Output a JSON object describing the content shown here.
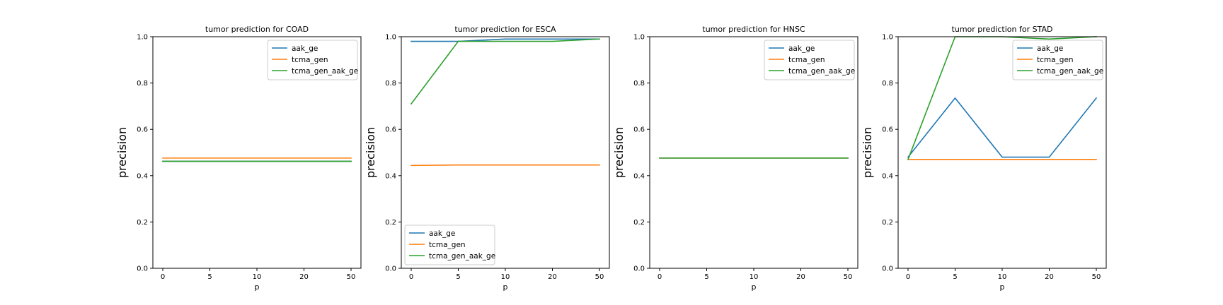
{
  "chart_data": [
    {
      "type": "line",
      "title": "tumor prediction for COAD",
      "xlabel": "p",
      "ylabel": "precision",
      "ylim": [
        0,
        1
      ],
      "x": [
        "0",
        "5",
        "10",
        "20",
        "50"
      ],
      "yticks": [
        "0.0",
        "0.2",
        "0.4",
        "0.6",
        "0.8",
        "1.0"
      ],
      "grid": false,
      "legend_position": "upper right",
      "series": [
        {
          "name": "aak_ge",
          "color": "#1f77b4",
          "values": [
            0.462,
            0.462,
            0.462,
            0.462,
            0.462
          ]
        },
        {
          "name": "tcma_gen",
          "color": "#ff7f0e",
          "values": [
            0.476,
            0.476,
            0.476,
            0.476,
            0.476
          ]
        },
        {
          "name": "tcma_gen_aak_ge",
          "color": "#2ca02c",
          "values": [
            0.462,
            0.462,
            0.462,
            0.462,
            0.462
          ]
        }
      ]
    },
    {
      "type": "line",
      "title": "tumor prediction for ESCA",
      "xlabel": "p",
      "ylabel": "precision",
      "ylim": [
        0,
        1
      ],
      "x": [
        "0",
        "5",
        "10",
        "20",
        "50"
      ],
      "yticks": [
        "0.0",
        "0.2",
        "0.4",
        "0.6",
        "0.8",
        "1.0"
      ],
      "grid": false,
      "legend_position": "lower left",
      "series": [
        {
          "name": "aak_ge",
          "color": "#1f77b4",
          "values": [
            0.98,
            0.98,
            0.99,
            0.99,
            0.99
          ]
        },
        {
          "name": "tcma_gen",
          "color": "#ff7f0e",
          "values": [
            0.444,
            0.446,
            0.446,
            0.446,
            0.446
          ]
        },
        {
          "name": "tcma_gen_aak_ge",
          "color": "#2ca02c",
          "values": [
            0.71,
            0.98,
            0.98,
            0.98,
            0.99
          ]
        }
      ]
    },
    {
      "type": "line",
      "title": "tumor prediction for HNSC",
      "xlabel": "p",
      "ylabel": "precision",
      "ylim": [
        0,
        1
      ],
      "x": [
        "0",
        "5",
        "10",
        "20",
        "50"
      ],
      "yticks": [
        "0.0",
        "0.2",
        "0.4",
        "0.6",
        "0.8",
        "1.0"
      ],
      "grid": false,
      "legend_position": "upper right",
      "series": [
        {
          "name": "aak_ge",
          "color": "#1f77b4",
          "values": [
            0.476,
            0.476,
            0.476,
            0.476,
            0.476
          ]
        },
        {
          "name": "tcma_gen",
          "color": "#ff7f0e",
          "values": [
            0.476,
            0.476,
            0.476,
            0.476,
            0.476
          ]
        },
        {
          "name": "tcma_gen_aak_ge",
          "color": "#2ca02c",
          "values": [
            0.476,
            0.476,
            0.476,
            0.476,
            0.476
          ]
        }
      ]
    },
    {
      "type": "line",
      "title": "tumor prediction for STAD",
      "xlabel": "p",
      "ylabel": "precision",
      "ylim": [
        0,
        1
      ],
      "x": [
        "0",
        "5",
        "10",
        "20",
        "50"
      ],
      "yticks": [
        "0.0",
        "0.2",
        "0.4",
        "0.6",
        "0.8",
        "1.0"
      ],
      "grid": false,
      "legend_position": "upper right",
      "series": [
        {
          "name": "aak_ge",
          "color": "#1f77b4",
          "values": [
            0.48,
            0.735,
            0.48,
            0.48,
            0.735
          ]
        },
        {
          "name": "tcma_gen",
          "color": "#ff7f0e",
          "values": [
            0.47,
            0.47,
            0.47,
            0.47,
            0.47
          ]
        },
        {
          "name": "tcma_gen_aak_ge",
          "color": "#2ca02c",
          "values": [
            0.47,
            1.0,
            1.0,
            0.99,
            1.0
          ]
        }
      ]
    }
  ]
}
